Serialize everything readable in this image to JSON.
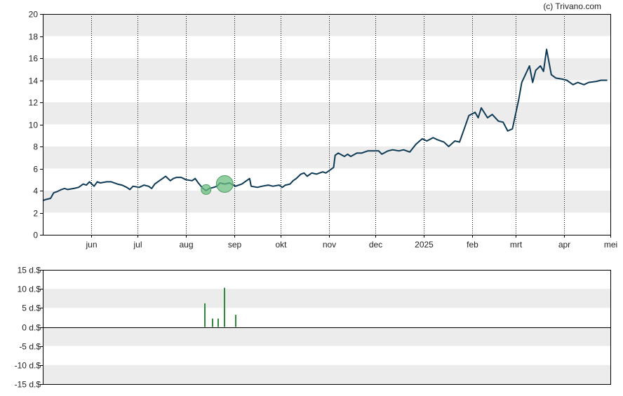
{
  "credit": "(c) Trivano.com",
  "colors": {
    "band": "#ececec",
    "frame": "#000000",
    "vgrid": "#000000",
    "price_line": "#0e3a56",
    "marker_fill": "#6cbf82",
    "marker_stroke": "#4e9f62",
    "dividend_bar": "#2e8b3e"
  },
  "chart_data": [
    {
      "type": "line",
      "title": "",
      "xlabel": "",
      "ylabel": "",
      "ylim": [
        0,
        20
      ],
      "yticks": [
        0,
        2,
        4,
        6,
        8,
        10,
        12,
        14,
        16,
        18,
        20
      ],
      "xlim": [
        "2024-05-01",
        "2025-05-01"
      ],
      "xticks": [
        {
          "x": "2024-06-01",
          "label": "jun"
        },
        {
          "x": "2024-07-01",
          "label": "jul"
        },
        {
          "x": "2024-08-01",
          "label": "aug"
        },
        {
          "x": "2024-09-01",
          "label": "sep"
        },
        {
          "x": "2024-10-01",
          "label": "okt"
        },
        {
          "x": "2024-11-01",
          "label": "nov"
        },
        {
          "x": "2024-12-01",
          "label": "dec"
        },
        {
          "x": "2025-01-01",
          "label": "2025"
        },
        {
          "x": "2025-02-01",
          "label": "feb"
        },
        {
          "x": "2025-03-01",
          "label": "mrt"
        },
        {
          "x": "2025-04-01",
          "label": "apr"
        },
        {
          "x": "2025-05-01",
          "label": "mei"
        }
      ],
      "grid": "alternating horizontal bands, dotted vertical lines at month ticks",
      "series": [
        {
          "points": [
            [
              "2024-05-01",
              3.1
            ],
            [
              "2024-05-03",
              3.2
            ],
            [
              "2024-05-06",
              3.3
            ],
            [
              "2024-05-08",
              3.8
            ],
            [
              "2024-05-10",
              3.9
            ],
            [
              "2024-05-13",
              4.1
            ],
            [
              "2024-05-15",
              4.2
            ],
            [
              "2024-05-17",
              4.1
            ],
            [
              "2024-05-21",
              4.2
            ],
            [
              "2024-05-24",
              4.3
            ],
            [
              "2024-05-27",
              4.6
            ],
            [
              "2024-05-29",
              4.5
            ],
            [
              "2024-05-31",
              4.8
            ],
            [
              "2024-06-03",
              4.4
            ],
            [
              "2024-06-05",
              4.8
            ],
            [
              "2024-06-07",
              4.7
            ],
            [
              "2024-06-11",
              4.8
            ],
            [
              "2024-06-14",
              4.8
            ],
            [
              "2024-06-18",
              4.6
            ],
            [
              "2024-06-21",
              4.5
            ],
            [
              "2024-06-24",
              4.3
            ],
            [
              "2024-06-26",
              4.1
            ],
            [
              "2024-06-28",
              4.4
            ],
            [
              "2024-07-02",
              4.3
            ],
            [
              "2024-07-05",
              4.5
            ],
            [
              "2024-07-08",
              4.4
            ],
            [
              "2024-07-10",
              4.2
            ],
            [
              "2024-07-12",
              4.6
            ],
            [
              "2024-07-15",
              4.9
            ],
            [
              "2024-07-17",
              5.1
            ],
            [
              "2024-07-19",
              5.3
            ],
            [
              "2024-07-22",
              4.9
            ],
            [
              "2024-07-24",
              5.1
            ],
            [
              "2024-07-26",
              5.2
            ],
            [
              "2024-07-29",
              5.2
            ],
            [
              "2024-08-01",
              5.0
            ],
            [
              "2024-08-05",
              4.9
            ],
            [
              "2024-08-07",
              5.1
            ],
            [
              "2024-08-09",
              4.7
            ],
            [
              "2024-08-12",
              4.2
            ],
            [
              "2024-08-14",
              4.0
            ],
            [
              "2024-08-16",
              4.2
            ],
            [
              "2024-08-19",
              4.3
            ],
            [
              "2024-08-21",
              4.4
            ],
            [
              "2024-08-23",
              4.7
            ],
            [
              "2024-08-26",
              4.6
            ],
            [
              "2024-08-29",
              4.7
            ],
            [
              "2024-09-02",
              4.4
            ],
            [
              "2024-09-04",
              4.5
            ],
            [
              "2024-09-06",
              4.6
            ],
            [
              "2024-09-09",
              4.9
            ],
            [
              "2024-09-11",
              5.1
            ],
            [
              "2024-09-12",
              4.4
            ],
            [
              "2024-09-16",
              4.3
            ],
            [
              "2024-09-19",
              4.4
            ],
            [
              "2024-09-23",
              4.5
            ],
            [
              "2024-09-26",
              4.4
            ],
            [
              "2024-09-30",
              4.5
            ],
            [
              "2024-10-02",
              4.3
            ],
            [
              "2024-10-04",
              4.5
            ],
            [
              "2024-10-07",
              4.6
            ],
            [
              "2024-10-09",
              4.9
            ],
            [
              "2024-10-11",
              5.1
            ],
            [
              "2024-10-14",
              5.5
            ],
            [
              "2024-10-16",
              5.6
            ],
            [
              "2024-10-18",
              5.3
            ],
            [
              "2024-10-21",
              5.6
            ],
            [
              "2024-10-24",
              5.5
            ],
            [
              "2024-10-28",
              5.7
            ],
            [
              "2024-10-30",
              5.6
            ],
            [
              "2024-11-01",
              5.8
            ],
            [
              "2024-11-04",
              6.1
            ],
            [
              "2024-11-05",
              7.2
            ],
            [
              "2024-11-07",
              7.4
            ],
            [
              "2024-11-11",
              7.1
            ],
            [
              "2024-11-13",
              7.3
            ],
            [
              "2024-11-15",
              7.1
            ],
            [
              "2024-11-19",
              7.4
            ],
            [
              "2024-11-22",
              7.4
            ],
            [
              "2024-11-26",
              7.6
            ],
            [
              "2024-11-29",
              7.6
            ],
            [
              "2024-12-03",
              7.6
            ],
            [
              "2024-12-05",
              7.3
            ],
            [
              "2024-12-09",
              7.6
            ],
            [
              "2024-12-12",
              7.7
            ],
            [
              "2024-12-16",
              7.6
            ],
            [
              "2024-12-19",
              7.7
            ],
            [
              "2024-12-23",
              7.5
            ],
            [
              "2024-12-27",
              8.2
            ],
            [
              "2024-12-31",
              8.7
            ],
            [
              "2025-01-03",
              8.5
            ],
            [
              "2025-01-07",
              8.8
            ],
            [
              "2025-01-10",
              8.6
            ],
            [
              "2025-01-14",
              8.4
            ],
            [
              "2025-01-17",
              8.0
            ],
            [
              "2025-01-21",
              8.5
            ],
            [
              "2025-01-24",
              8.4
            ],
            [
              "2025-01-27",
              9.6
            ],
            [
              "2025-01-30",
              10.8
            ],
            [
              "2025-02-03",
              11.1
            ],
            [
              "2025-02-05",
              10.6
            ],
            [
              "2025-02-07",
              11.5
            ],
            [
              "2025-02-11",
              10.6
            ],
            [
              "2025-02-14",
              10.9
            ],
            [
              "2025-02-18",
              10.3
            ],
            [
              "2025-02-21",
              10.2
            ],
            [
              "2025-02-24",
              9.4
            ],
            [
              "2025-02-27",
              9.6
            ],
            [
              "2025-03-03",
              12.2
            ],
            [
              "2025-03-05",
              13.8
            ],
            [
              "2025-03-07",
              14.4
            ],
            [
              "2025-03-10",
              15.3
            ],
            [
              "2025-03-12",
              13.8
            ],
            [
              "2025-03-14",
              14.9
            ],
            [
              "2025-03-17",
              15.3
            ],
            [
              "2025-03-19",
              14.8
            ],
            [
              "2025-03-21",
              16.8
            ],
            [
              "2025-03-24",
              14.5
            ],
            [
              "2025-03-27",
              14.2
            ],
            [
              "2025-03-31",
              14.1
            ],
            [
              "2025-04-03",
              14.0
            ],
            [
              "2025-04-07",
              13.6
            ],
            [
              "2025-04-10",
              13.8
            ],
            [
              "2025-04-14",
              13.6
            ],
            [
              "2025-04-17",
              13.8
            ],
            [
              "2025-04-22",
              13.9
            ],
            [
              "2025-04-25",
              14.0
            ],
            [
              "2025-04-29",
              14.0
            ]
          ]
        }
      ],
      "markers": [
        {
          "x": "2024-08-14",
          "y": 4.1,
          "size": "small"
        },
        {
          "x": "2024-08-26",
          "y": 4.6,
          "size": "large"
        }
      ]
    },
    {
      "type": "bar",
      "title": "",
      "xlabel": "",
      "ylabel": "",
      "ylim": [
        -15,
        15
      ],
      "yticks": [
        {
          "v": 15,
          "label": "15 d.$"
        },
        {
          "v": 10,
          "label": "10 d.$"
        },
        {
          "v": 5,
          "label": "5 d.$"
        },
        {
          "v": 0,
          "label": "0 d.$"
        },
        {
          "v": -5,
          "label": "-5 d.$"
        },
        {
          "v": -10,
          "label": "-10 d.$"
        },
        {
          "v": -15,
          "label": "-15 d.$"
        }
      ],
      "xlim": [
        "2024-05-01",
        "2025-05-01"
      ],
      "bars": [
        {
          "x": "2024-08-13",
          "value": 6.2
        },
        {
          "x": "2024-08-18",
          "value": 2.2
        },
        {
          "x": "2024-08-22",
          "value": 2.2
        },
        {
          "x": "2024-08-26",
          "value": 10.3
        },
        {
          "x": "2024-09-02",
          "value": 3.2
        }
      ]
    }
  ]
}
